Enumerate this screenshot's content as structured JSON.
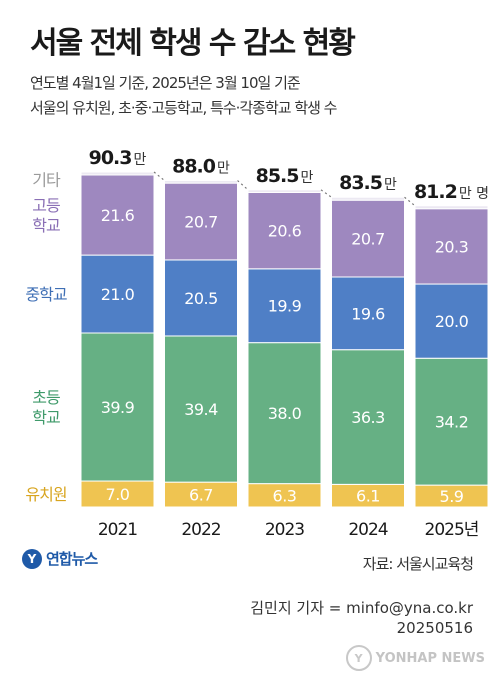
{
  "title": "서울 전체 학생 수 감소 현황",
  "subtitle1": "연도별 4월1일 기준, 2025년은 3월 10일 기준",
  "subtitle2": "서울의 유치원, 초·중·고등학교, 특수·각종학교 학생 수",
  "chart_data": {
    "type": "bar",
    "stacked": true,
    "categories": [
      "2021",
      "2022",
      "2023",
      "2024",
      "2025년"
    ],
    "series": [
      {
        "name": "유치원",
        "color": "#efc451",
        "values": [
          7.0,
          6.7,
          6.3,
          6.1,
          5.9
        ]
      },
      {
        "name": "초등 학교",
        "color": "#66b084",
        "values": [
          39.9,
          39.4,
          38.0,
          36.3,
          34.2
        ]
      },
      {
        "name": "중학교",
        "color": "#4f7fc6",
        "values": [
          21.0,
          20.5,
          19.9,
          19.6,
          20.0
        ]
      },
      {
        "name": "고등 학교",
        "color": "#9e88bf",
        "values": [
          21.6,
          20.7,
          20.6,
          20.7,
          20.3
        ]
      },
      {
        "name": "기타",
        "color": "#ece9f2",
        "values": [
          0.8,
          0.7,
          0.7,
          0.8,
          0.8
        ]
      }
    ],
    "totals": [
      "90.3",
      "88.0",
      "85.5",
      "83.5",
      "81.2"
    ],
    "total_unit": "만",
    "total_unit_last": "만 명",
    "ylim": [
      0,
      90.3
    ],
    "grid": false
  },
  "label_colors": {
    "기타": "#9a9a9a",
    "고등 학교": "#8a6fb5",
    "중학교": "#3f6fb5",
    "초등 학교": "#3f9a6a",
    "유치원": "#d8a520"
  },
  "logo_text": "연합뉴스",
  "source": "자료: 서울시교육청",
  "reporter": "김민지 기자 = minfo@yna.co.kr",
  "date": "20250516",
  "watermark": "YONHAP NEWS",
  "icons": {
    "logo": "yonhap-logo-icon",
    "watermark": "yonhap-watermark-icon"
  }
}
